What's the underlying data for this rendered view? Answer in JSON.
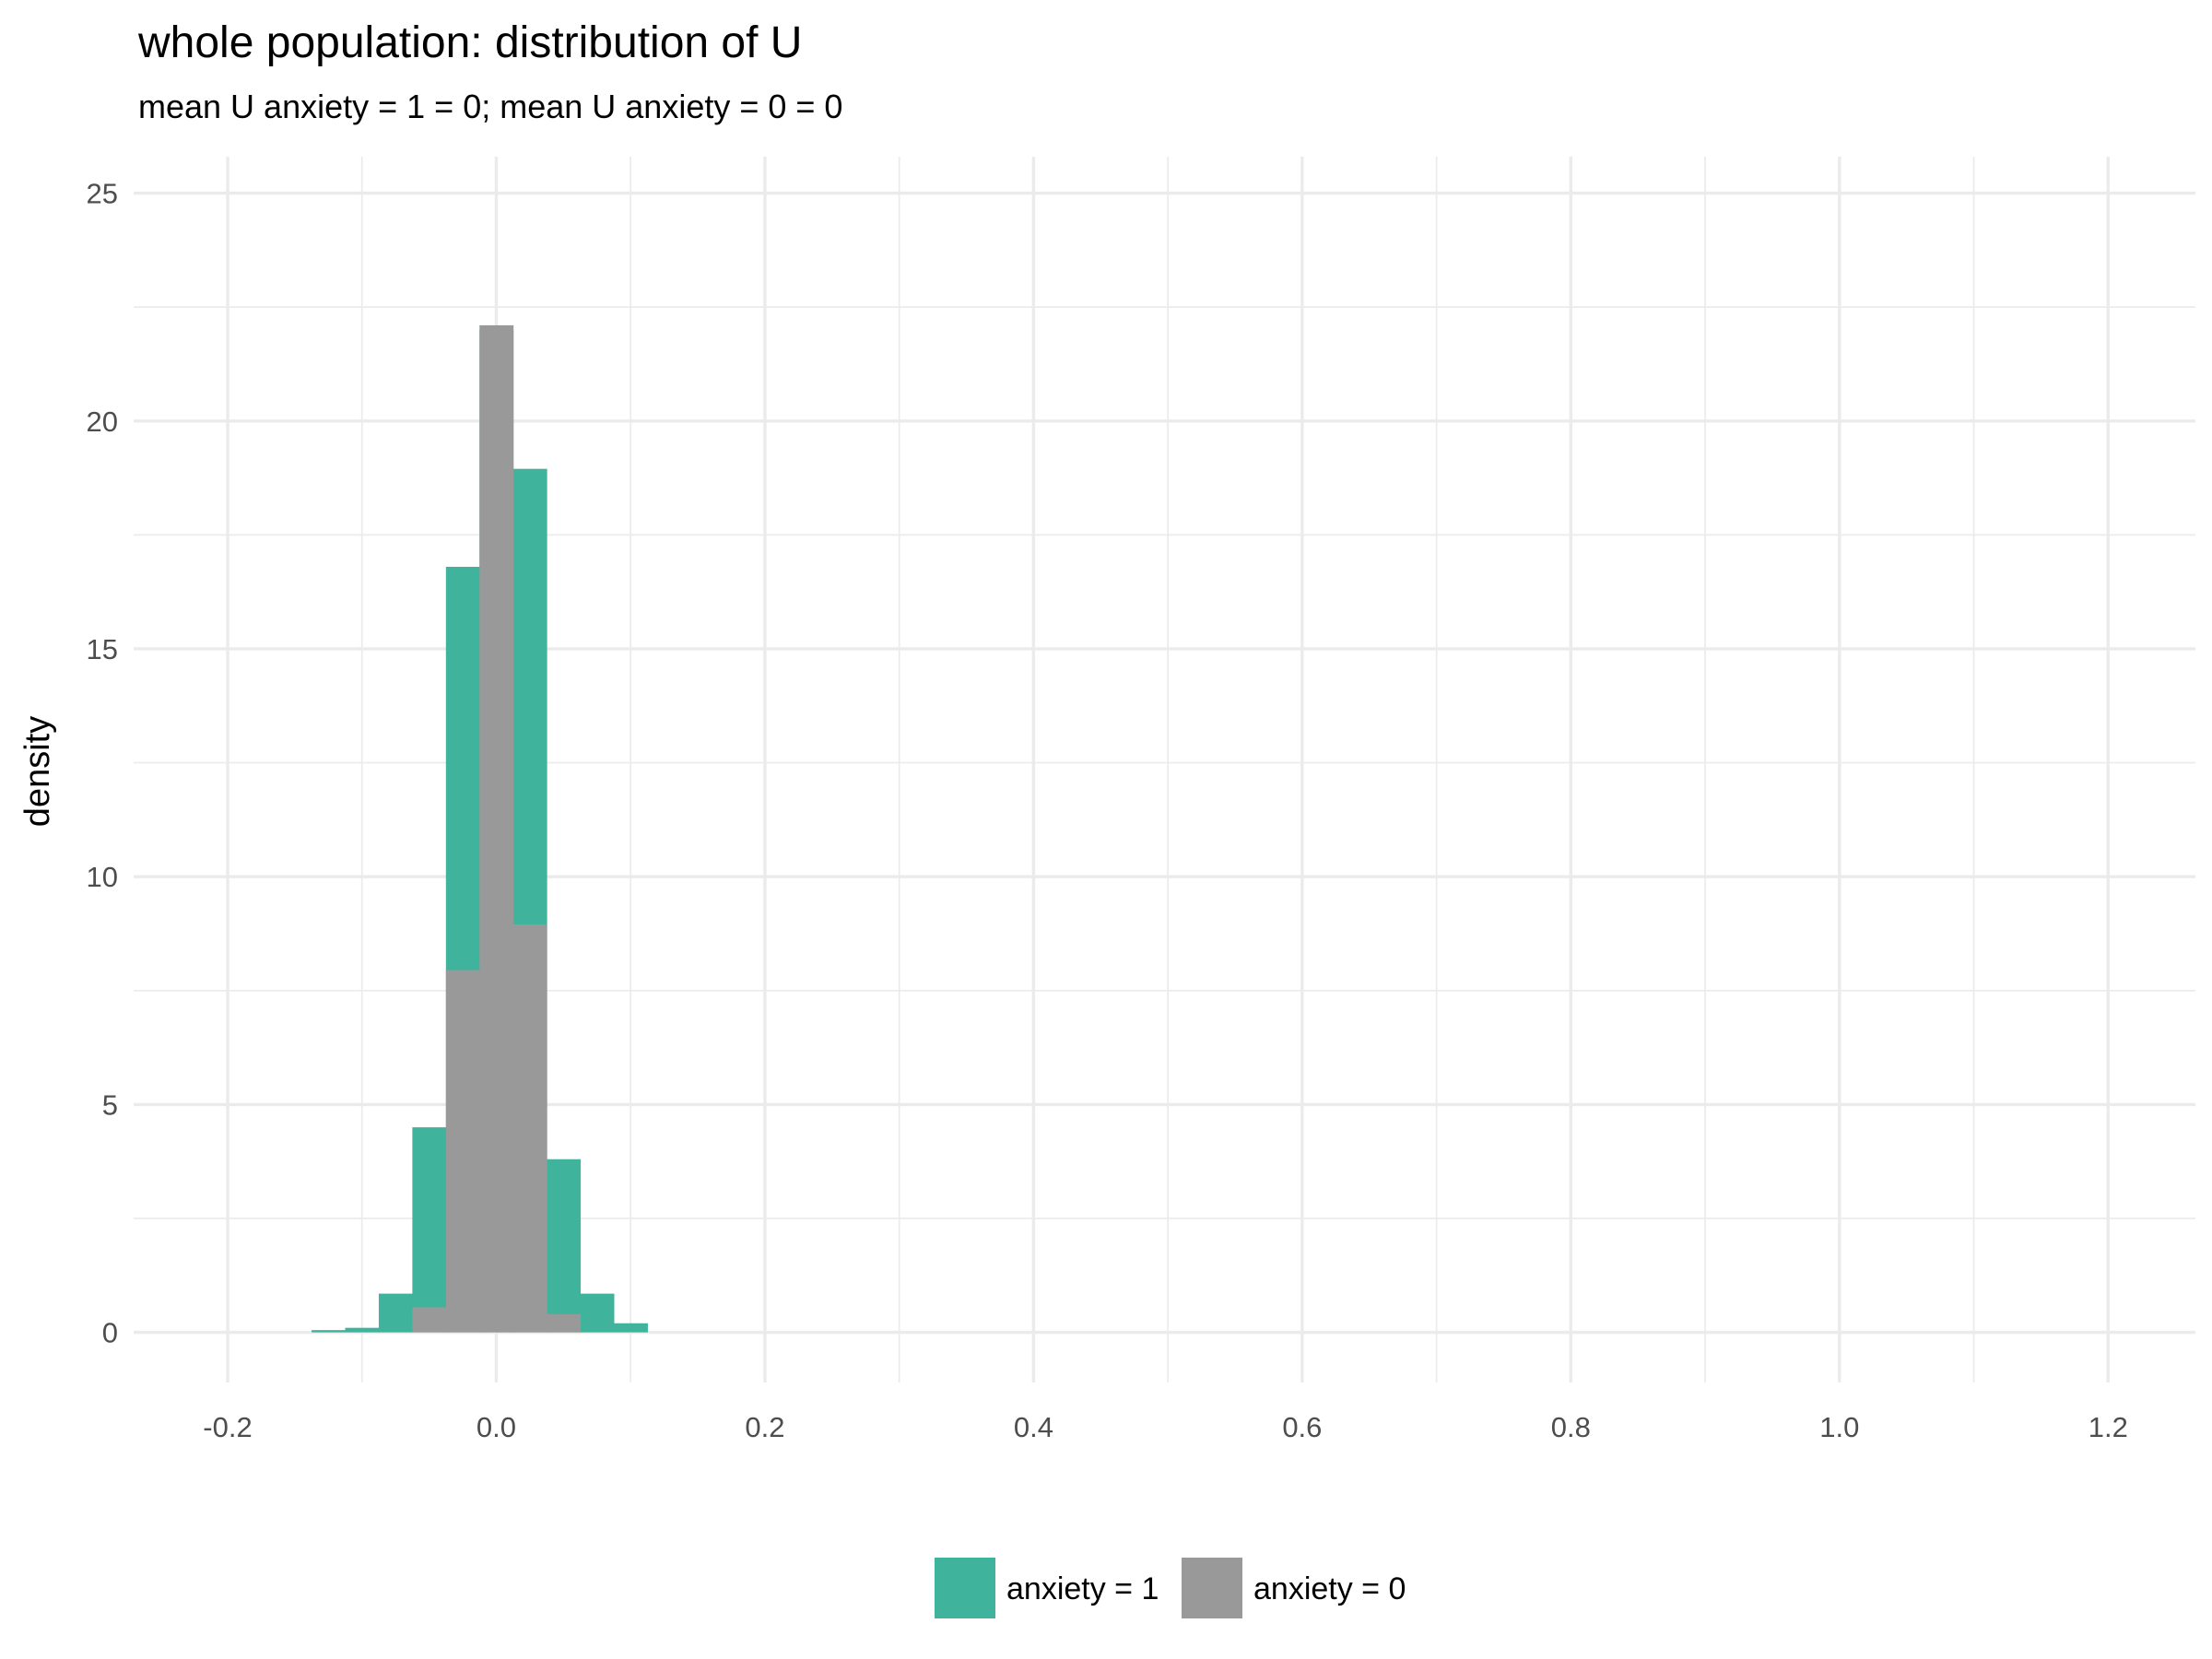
{
  "chart_data": {
    "type": "histogram",
    "title": "whole population: distribution of U",
    "subtitle": "mean U anxiety = 1 = 0; mean U anxiety = 0 = 0",
    "xlabel": "",
    "ylabel": "density",
    "xlim": [
      -0.27,
      1.265
    ],
    "ylim": [
      -1.1,
      25.8
    ],
    "x_ticks": [
      -0.2,
      0.0,
      0.2,
      0.4,
      0.6,
      0.8,
      1.0,
      1.2
    ],
    "x_tick_labels": [
      "-0.2",
      "0.0",
      "0.2",
      "0.4",
      "0.6",
      "0.8",
      "1.0",
      "1.2"
    ],
    "y_ticks": [
      0,
      5,
      10,
      15,
      20,
      25
    ],
    "y_tick_labels": [
      "0",
      "5",
      "10",
      "15",
      "20",
      "25"
    ],
    "x_minor_ticks": [
      -0.1,
      0.1,
      0.3,
      0.5,
      0.7,
      0.9,
      1.1
    ],
    "y_minor_ticks": [
      2.5,
      7.5,
      12.5,
      17.5,
      22.5
    ],
    "grid": true,
    "legend_position": "bottom",
    "bin_width": 0.025,
    "series": [
      {
        "name": "anxiety = 1",
        "color": "#3FB39B",
        "bins": [
          {
            "x0": -0.1375,
            "x1": -0.1125,
            "density": 0.05
          },
          {
            "x0": -0.1125,
            "x1": -0.0875,
            "density": 0.1
          },
          {
            "x0": -0.0875,
            "x1": -0.0625,
            "density": 0.85
          },
          {
            "x0": -0.0625,
            "x1": -0.0375,
            "density": 4.5
          },
          {
            "x0": -0.0375,
            "x1": -0.0125,
            "density": 16.8
          },
          {
            "x0": -0.0125,
            "x1": 0.0125,
            "density": 22.0
          },
          {
            "x0": 0.0125,
            "x1": 0.0375,
            "density": 18.95
          },
          {
            "x0": 0.0375,
            "x1": 0.0625,
            "density": 3.8
          },
          {
            "x0": 0.0625,
            "x1": 0.0875,
            "density": 0.85
          },
          {
            "x0": 0.0875,
            "x1": 0.1125,
            "density": 0.2
          }
        ]
      },
      {
        "name": "anxiety = 0",
        "color": "#999999",
        "bins": [
          {
            "x0": -0.0625,
            "x1": -0.0375,
            "density": 0.55
          },
          {
            "x0": -0.0375,
            "x1": -0.0125,
            "density": 7.95
          },
          {
            "x0": -0.0125,
            "x1": 0.0125,
            "density": 22.1
          },
          {
            "x0": 0.0125,
            "x1": 0.0375,
            "density": 8.95
          },
          {
            "x0": 0.0375,
            "x1": 0.0625,
            "density": 0.4
          }
        ]
      }
    ]
  }
}
